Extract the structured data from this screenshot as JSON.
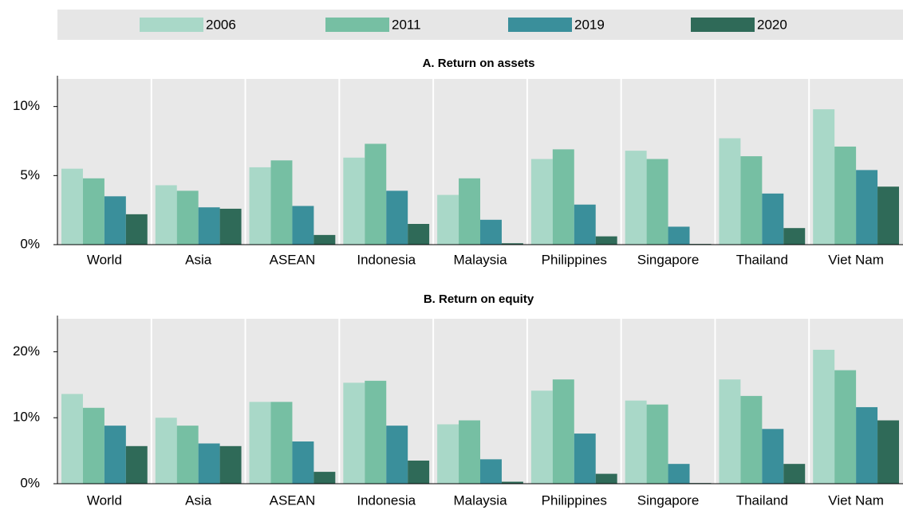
{
  "chart_data": [
    {
      "type": "bar",
      "title": "A. Return on assets",
      "categories": [
        "World",
        "Asia",
        "ASEAN",
        "Indonesia",
        "Malaysia",
        "Philippines",
        "Singapore",
        "Thailand",
        "Viet Nam"
      ],
      "series": [
        {
          "name": "2006",
          "color": "#a9d8c8",
          "values": [
            5.5,
            4.3,
            5.6,
            6.3,
            3.6,
            6.2,
            6.8,
            7.7,
            9.8
          ]
        },
        {
          "name": "2011",
          "color": "#76bfa3",
          "values": [
            4.8,
            3.9,
            6.1,
            7.3,
            4.8,
            6.9,
            6.2,
            6.4,
            7.1
          ]
        },
        {
          "name": "2019",
          "color": "#3a8f9b",
          "values": [
            3.5,
            2.7,
            2.8,
            3.9,
            1.8,
            2.9,
            1.3,
            3.7,
            5.4
          ]
        },
        {
          "name": "2020",
          "color": "#2f6a58",
          "values": [
            2.2,
            2.6,
            0.7,
            1.5,
            0.1,
            0.6,
            0.05,
            1.2,
            4.2
          ]
        }
      ],
      "ylim": [
        0,
        12
      ],
      "yticks": [
        {
          "value": 0,
          "label": "0%"
        },
        {
          "value": 5,
          "label": "5%"
        },
        {
          "value": 10,
          "label": "10%"
        }
      ]
    },
    {
      "type": "bar",
      "title": "B. Return on equity",
      "categories": [
        "World",
        "Asia",
        "ASEAN",
        "Indonesia",
        "Malaysia",
        "Philippines",
        "Singapore",
        "Thailand",
        "Viet Nam"
      ],
      "series": [
        {
          "color": "#a9d8c8",
          "values": [
            13.6,
            10,
            12.4,
            15.3,
            9,
            14.1,
            12.6,
            15.8,
            20.3
          ]
        },
        {
          "color": "#76bfa3",
          "values": [
            11.5,
            8.8,
            12.4,
            15.6,
            9.6,
            15.8,
            12,
            13.3,
            17.2
          ]
        },
        {
          "color": "#3a8f9b",
          "values": [
            8.8,
            6.1,
            6.4,
            8.8,
            3.7,
            7.6,
            3,
            8.3,
            11.6
          ]
        },
        {
          "color": "#2f6a58",
          "values": [
            5.7,
            5.7,
            1.8,
            3.5,
            0.3,
            1.5,
            0.1,
            3,
            9.6
          ]
        }
      ],
      "ylim": [
        0,
        25
      ],
      "yticks": [
        {
          "value": 0,
          "label": "0%"
        },
        {
          "value": 10,
          "label": "10%"
        },
        {
          "value": 20,
          "label": "20%"
        }
      ]
    }
  ]
}
